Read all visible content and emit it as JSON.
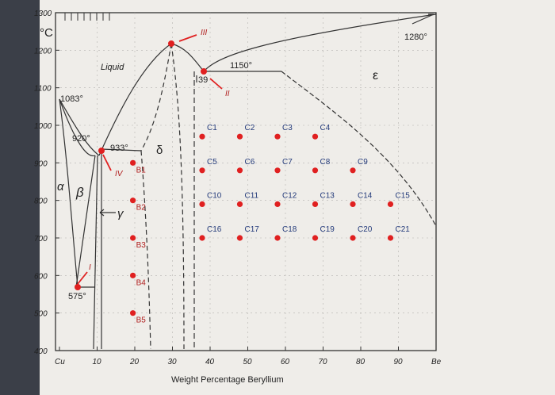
{
  "units": "°C",
  "x_axis_label": "Weight Percentage Beryllium",
  "x_ticks": [
    "Cu",
    "10",
    "20",
    "30",
    "40",
    "50",
    "60",
    "70",
    "80",
    "90",
    "Be"
  ],
  "y_ticks": [
    "1300",
    "1200",
    "1100",
    "1000",
    "900",
    "800",
    "700",
    "600",
    "500",
    "400"
  ],
  "annotations": {
    "liquid": "Liquid",
    "t1083": "1083°",
    "t920": "920°",
    "t933": "933°",
    "t575": "575°",
    "t1150": "1150°",
    "t1280": "1280°",
    "val39": "39",
    "alpha": "α",
    "beta": "β",
    "gamma": "γ",
    "delta": "δ",
    "epsilon": "ε"
  },
  "markers": [
    {
      "id": "I",
      "label": "I",
      "x": 10,
      "y": 585
    },
    {
      "id": "II",
      "label": "II",
      "x": 40,
      "y": 1150
    },
    {
      "id": "III",
      "label": "III",
      "x": 30,
      "y": 1260
    },
    {
      "id": "IV",
      "label": "IV",
      "x": 12,
      "y": 930
    }
  ],
  "points_b": [
    {
      "label": "B1",
      "x": 20,
      "y": 900
    },
    {
      "label": "B2",
      "x": 20,
      "y": 800
    },
    {
      "label": "B3",
      "x": 20,
      "y": 700
    },
    {
      "label": "B4",
      "x": 20,
      "y": 600
    },
    {
      "label": "B5",
      "x": 20,
      "y": 500
    }
  ],
  "points_c": [
    {
      "label": "C1",
      "x": 40,
      "y": 970
    },
    {
      "label": "C2",
      "x": 50,
      "y": 970
    },
    {
      "label": "C3",
      "x": 60,
      "y": 970
    },
    {
      "label": "C4",
      "x": 70,
      "y": 970
    },
    {
      "label": "C5",
      "x": 40,
      "y": 880
    },
    {
      "label": "C6",
      "x": 50,
      "y": 880
    },
    {
      "label": "C7",
      "x": 60,
      "y": 880
    },
    {
      "label": "C8",
      "x": 70,
      "y": 880
    },
    {
      "label": "C9",
      "x": 80,
      "y": 880
    },
    {
      "label": "C10",
      "x": 40,
      "y": 790
    },
    {
      "label": "C11",
      "x": 50,
      "y": 790
    },
    {
      "label": "C12",
      "x": 60,
      "y": 790
    },
    {
      "label": "C13",
      "x": 70,
      "y": 790
    },
    {
      "label": "C14",
      "x": 80,
      "y": 790
    },
    {
      "label": "C15",
      "x": 90,
      "y": 790
    },
    {
      "label": "C16",
      "x": 40,
      "y": 700
    },
    {
      "label": "C17",
      "x": 50,
      "y": 700
    },
    {
      "label": "C18",
      "x": 60,
      "y": 700
    },
    {
      "label": "C19",
      "x": 70,
      "y": 700
    },
    {
      "label": "C20",
      "x": 80,
      "y": 700
    },
    {
      "label": "C21",
      "x": 90,
      "y": 700
    }
  ],
  "colors": {
    "point": "#e02020",
    "line": "#333333",
    "label_blue": "#233a7a"
  }
}
